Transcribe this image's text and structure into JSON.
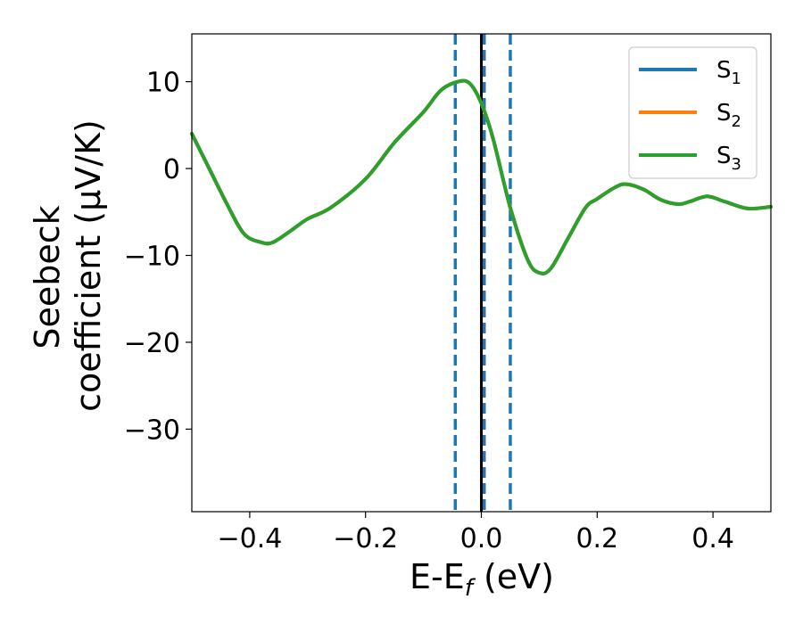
{
  "chart_data": {
    "type": "line",
    "xlabel": "E-E",
    "xlabel_sub": "f",
    "xlabel_unit": " (eV)",
    "ylabel_line1": "Seebeck",
    "ylabel_line2": "coefficient  (μV/K)",
    "xlim": [
      -0.5,
      0.5
    ],
    "ylim": [
      -39.5,
      15.5
    ],
    "xticks": [
      -0.4,
      -0.2,
      0.0,
      0.2,
      0.4
    ],
    "xtick_labels": [
      "−0.4",
      "−0.2",
      "0.0",
      "0.2",
      "0.4"
    ],
    "yticks": [
      10,
      0,
      -10,
      -20,
      -30
    ],
    "ytick_labels": [
      "10",
      "0",
      "−10",
      "−20",
      "−30"
    ],
    "legend_position": "top-right",
    "vlines": [
      {
        "x": 0.0,
        "style": "solid",
        "color": "#000000"
      },
      {
        "x": -0.045,
        "style": "dashed",
        "color": "#1f77b4"
      },
      {
        "x": 0.005,
        "style": "dashed",
        "color": "#1f77b4"
      },
      {
        "x": 0.05,
        "style": "dashed",
        "color": "#1f77b4"
      }
    ],
    "series": [
      {
        "name": "S",
        "sub": "1",
        "color": "#1f77b4",
        "x": [
          -0.5,
          -0.47,
          -0.44,
          -0.41,
          -0.38,
          -0.36,
          -0.33,
          -0.3,
          -0.26,
          -0.2,
          -0.15,
          -0.1,
          -0.07,
          -0.04,
          -0.02,
          0.0,
          0.02,
          0.05,
          0.08,
          0.1,
          0.12,
          0.15,
          0.18,
          0.2,
          0.23,
          0.25,
          0.28,
          0.31,
          0.34,
          0.36,
          0.39,
          0.42,
          0.46,
          0.5
        ],
        "y": [
          4,
          0,
          -4,
          -7.5,
          -8.5,
          -8.5,
          -7.2,
          -5.8,
          -4.5,
          -1.2,
          3,
          6.5,
          9,
          10,
          9.8,
          7.5,
          3.5,
          -4.5,
          -10.5,
          -12,
          -11.5,
          -8,
          -4.5,
          -3.5,
          -2.2,
          -1.8,
          -2.4,
          -3.6,
          -4.1,
          -3.8,
          -3.2,
          -3.8,
          -4.6,
          -4.4
        ]
      },
      {
        "name": "S",
        "sub": "2",
        "color": "#ff7f0e",
        "x": [
          -0.5,
          -0.47,
          -0.44,
          -0.41,
          -0.38,
          -0.36,
          -0.33,
          -0.3,
          -0.26,
          -0.2,
          -0.15,
          -0.1,
          -0.07,
          -0.04,
          -0.02,
          0.0,
          0.02,
          0.05,
          0.08,
          0.1,
          0.12,
          0.15,
          0.18,
          0.2,
          0.23,
          0.25,
          0.28,
          0.31,
          0.34,
          0.36,
          0.39,
          0.42,
          0.46,
          0.5
        ],
        "y": [
          4,
          0,
          -4,
          -7.5,
          -8.5,
          -8.5,
          -7.2,
          -5.8,
          -4.5,
          -1.2,
          3,
          6.5,
          9,
          10,
          9.8,
          7.5,
          3.5,
          -4.5,
          -10.5,
          -12,
          -11.5,
          -8,
          -4.5,
          -3.5,
          -2.2,
          -1.8,
          -2.4,
          -3.6,
          -4.1,
          -3.8,
          -3.2,
          -3.8,
          -4.6,
          -4.4
        ]
      },
      {
        "name": "S",
        "sub": "3",
        "color": "#2ca02c",
        "x": [
          -0.5,
          -0.47,
          -0.44,
          -0.41,
          -0.38,
          -0.36,
          -0.33,
          -0.3,
          -0.26,
          -0.2,
          -0.15,
          -0.1,
          -0.07,
          -0.04,
          -0.02,
          0.0,
          0.02,
          0.05,
          0.08,
          0.1,
          0.12,
          0.15,
          0.18,
          0.2,
          0.23,
          0.25,
          0.28,
          0.31,
          0.34,
          0.36,
          0.39,
          0.42,
          0.46,
          0.5
        ],
        "y": [
          4,
          0,
          -4,
          -7.5,
          -8.5,
          -8.5,
          -7.2,
          -5.8,
          -4.5,
          -1.2,
          3,
          6.5,
          9,
          10,
          9.8,
          7.5,
          3.5,
          -4.5,
          -10.5,
          -12,
          -11.5,
          -8,
          -4.5,
          -3.5,
          -2.2,
          -1.8,
          -2.4,
          -3.6,
          -4.1,
          -3.8,
          -3.2,
          -3.8,
          -4.6,
          -4.4
        ]
      }
    ]
  }
}
